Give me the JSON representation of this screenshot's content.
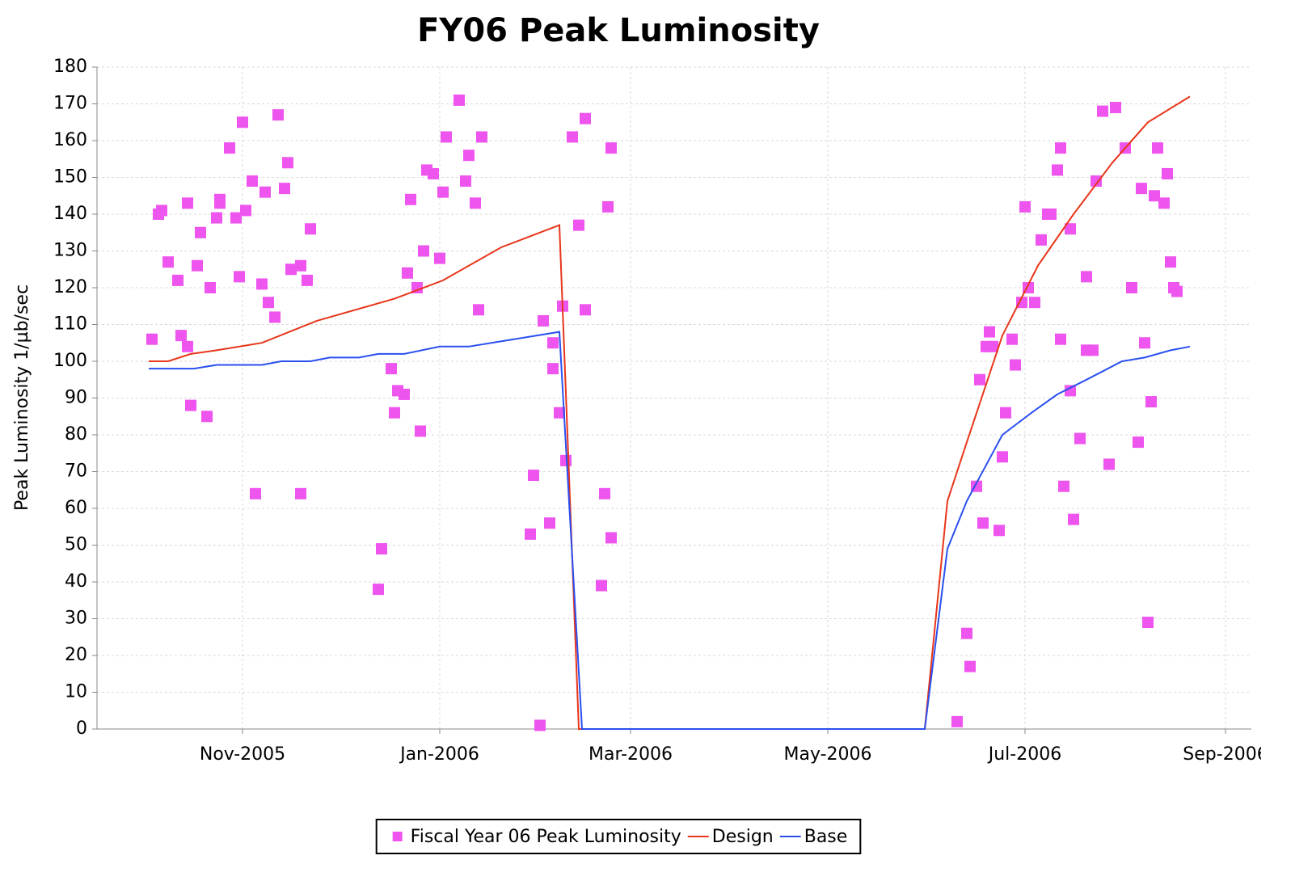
{
  "chart_data": {
    "type": "line",
    "title": "FY06 Peak Luminosity",
    "y_label": "Peak Luminosity 1/µb/sec",
    "xlim": [
      "2005-09-17",
      "2006-09-09"
    ],
    "xticks": [
      {
        "value": "2005-11-01",
        "label": "Nov-2005"
      },
      {
        "value": "2006-01-01",
        "label": "Jan-2006"
      },
      {
        "value": "2006-03-01",
        "label": "Mar-2006"
      },
      {
        "value": "2006-05-01",
        "label": "May-2006"
      },
      {
        "value": "2006-07-01",
        "label": "Jul-2006"
      },
      {
        "value": "2006-09-01",
        "label": "Sep-2006"
      }
    ],
    "ylim": [
      0,
      180
    ],
    "yticks": [
      0,
      10,
      20,
      30,
      40,
      50,
      60,
      70,
      80,
      90,
      100,
      110,
      120,
      130,
      140,
      150,
      160,
      170,
      180
    ],
    "grid": true,
    "legend": "bottom",
    "series": [
      {
        "name": "Fiscal Year 06 Peak Luminosity",
        "type": "scatter",
        "color": "#ee55ee",
        "x": [
          "2005-10-04",
          "2005-10-06",
          "2005-10-07",
          "2005-10-09",
          "2005-10-12",
          "2005-10-13",
          "2005-10-15",
          "2005-10-15",
          "2005-10-16",
          "2005-10-18",
          "2005-10-19",
          "2005-10-21",
          "2005-10-22",
          "2005-10-24",
          "2005-10-25",
          "2005-10-25",
          "2005-10-28",
          "2005-10-30",
          "2005-10-31",
          "2005-11-01",
          "2005-11-02",
          "2005-11-04",
          "2005-11-05",
          "2005-11-07",
          "2005-11-08",
          "2005-11-09",
          "2005-11-11",
          "2005-11-12",
          "2005-11-14",
          "2005-11-15",
          "2005-11-16",
          "2005-11-19",
          "2005-11-19",
          "2005-11-21",
          "2005-11-22",
          "2005-12-13",
          "2005-12-14",
          "2005-12-17",
          "2005-12-18",
          "2005-12-19",
          "2005-12-21",
          "2005-12-22",
          "2005-12-23",
          "2005-12-25",
          "2005-12-26",
          "2005-12-27",
          "2005-12-28",
          "2005-12-30",
          "2006-01-01",
          "2006-01-02",
          "2006-01-03",
          "2006-01-07",
          "2006-01-09",
          "2006-01-10",
          "2006-01-12",
          "2006-01-13",
          "2006-01-14",
          "2006-01-29",
          "2006-01-30",
          "2006-02-01",
          "2006-02-02",
          "2006-02-04",
          "2006-02-05",
          "2006-02-05",
          "2006-02-07",
          "2006-02-08",
          "2006-02-09",
          "2006-02-11",
          "2006-02-13",
          "2006-02-15",
          "2006-02-15",
          "2006-02-20",
          "2006-02-21",
          "2006-02-22",
          "2006-02-23",
          "2006-02-23",
          "2006-06-10",
          "2006-06-13",
          "2006-06-14",
          "2006-06-16",
          "2006-06-17",
          "2006-06-18",
          "2006-06-19",
          "2006-06-20",
          "2006-06-21",
          "2006-06-23",
          "2006-06-24",
          "2006-06-25",
          "2006-06-27",
          "2006-06-28",
          "2006-06-30",
          "2006-07-01",
          "2006-07-02",
          "2006-07-04",
          "2006-07-06",
          "2006-07-08",
          "2006-07-09",
          "2006-07-11",
          "2006-07-12",
          "2006-07-12",
          "2006-07-13",
          "2006-07-15",
          "2006-07-15",
          "2006-07-16",
          "2006-07-18",
          "2006-07-20",
          "2006-07-20",
          "2006-07-22",
          "2006-07-23",
          "2006-07-25",
          "2006-07-27",
          "2006-07-29",
          "2006-08-01",
          "2006-08-03",
          "2006-08-05",
          "2006-08-06",
          "2006-08-07",
          "2006-08-08",
          "2006-08-09",
          "2006-08-10",
          "2006-08-11",
          "2006-08-13",
          "2006-08-14",
          "2006-08-15",
          "2006-08-16",
          "2006-08-17"
        ],
        "values": [
          106,
          140,
          141,
          127,
          122,
          107,
          143,
          104,
          88,
          126,
          135,
          85,
          120,
          139,
          144,
          143,
          158,
          139,
          123,
          165,
          141,
          149,
          64,
          121,
          146,
          116,
          112,
          167,
          147,
          154,
          125,
          64,
          126,
          122,
          136,
          38,
          49,
          98,
          86,
          92,
          91,
          124,
          144,
          120,
          81,
          130,
          152,
          151,
          128,
          146,
          161,
          171,
          149,
          156,
          143,
          114,
          161,
          53,
          69,
          1,
          111,
          56,
          105,
          98,
          86,
          115,
          73,
          161,
          137,
          166,
          114,
          39,
          64,
          142,
          52,
          158,
          2,
          26,
          17,
          66,
          95,
          56,
          104,
          108,
          104,
          54,
          74,
          86,
          106,
          99,
          116,
          142,
          120,
          116,
          133,
          140,
          140,
          152,
          158,
          106,
          66,
          136,
          92,
          57,
          79,
          123,
          103,
          103,
          149,
          168,
          72,
          169,
          158,
          120,
          78,
          147,
          105,
          29,
          89,
          145,
          158,
          143,
          151,
          127,
          120,
          119
        ]
      },
      {
        "name": "Design",
        "type": "line",
        "color": "#e8351a",
        "x": [
          "2005-10-03",
          "2005-10-09",
          "2005-10-16",
          "2005-10-24",
          "2005-11-07",
          "2005-11-24",
          "2005-12-18",
          "2006-01-02",
          "2006-01-20",
          "2006-02-07",
          "2006-02-13",
          "2006-05-31",
          "2006-06-07",
          "2006-06-13",
          "2006-06-24",
          "2006-07-05",
          "2006-07-16",
          "2006-07-28",
          "2006-08-08",
          "2006-08-21"
        ],
        "values": [
          100,
          100,
          102,
          103,
          105,
          111,
          117,
          122,
          131,
          137,
          0,
          0,
          62,
          78,
          107,
          126,
          140,
          154,
          165,
          172
        ]
      },
      {
        "name": "Base",
        "type": "line",
        "color": "#2a4ff0",
        "x": [
          "2005-10-03",
          "2005-10-17",
          "2005-10-24",
          "2005-11-07",
          "2005-11-13",
          "2005-11-22",
          "2005-11-28",
          "2005-12-07",
          "2005-12-13",
          "2005-12-21",
          "2006-01-01",
          "2006-01-10",
          "2006-02-07",
          "2006-02-14",
          "2006-05-31",
          "2006-06-07",
          "2006-06-13",
          "2006-06-24",
          "2006-07-03",
          "2006-07-11",
          "2006-07-20",
          "2006-07-31",
          "2006-08-07",
          "2006-08-15",
          "2006-08-21"
        ],
        "values": [
          98,
          98,
          99,
          99,
          100,
          100,
          101,
          101,
          102,
          102,
          104,
          104,
          108,
          0,
          0,
          49,
          62,
          80,
          86,
          91,
          95,
          100,
          101,
          103,
          104
        ]
      }
    ]
  }
}
